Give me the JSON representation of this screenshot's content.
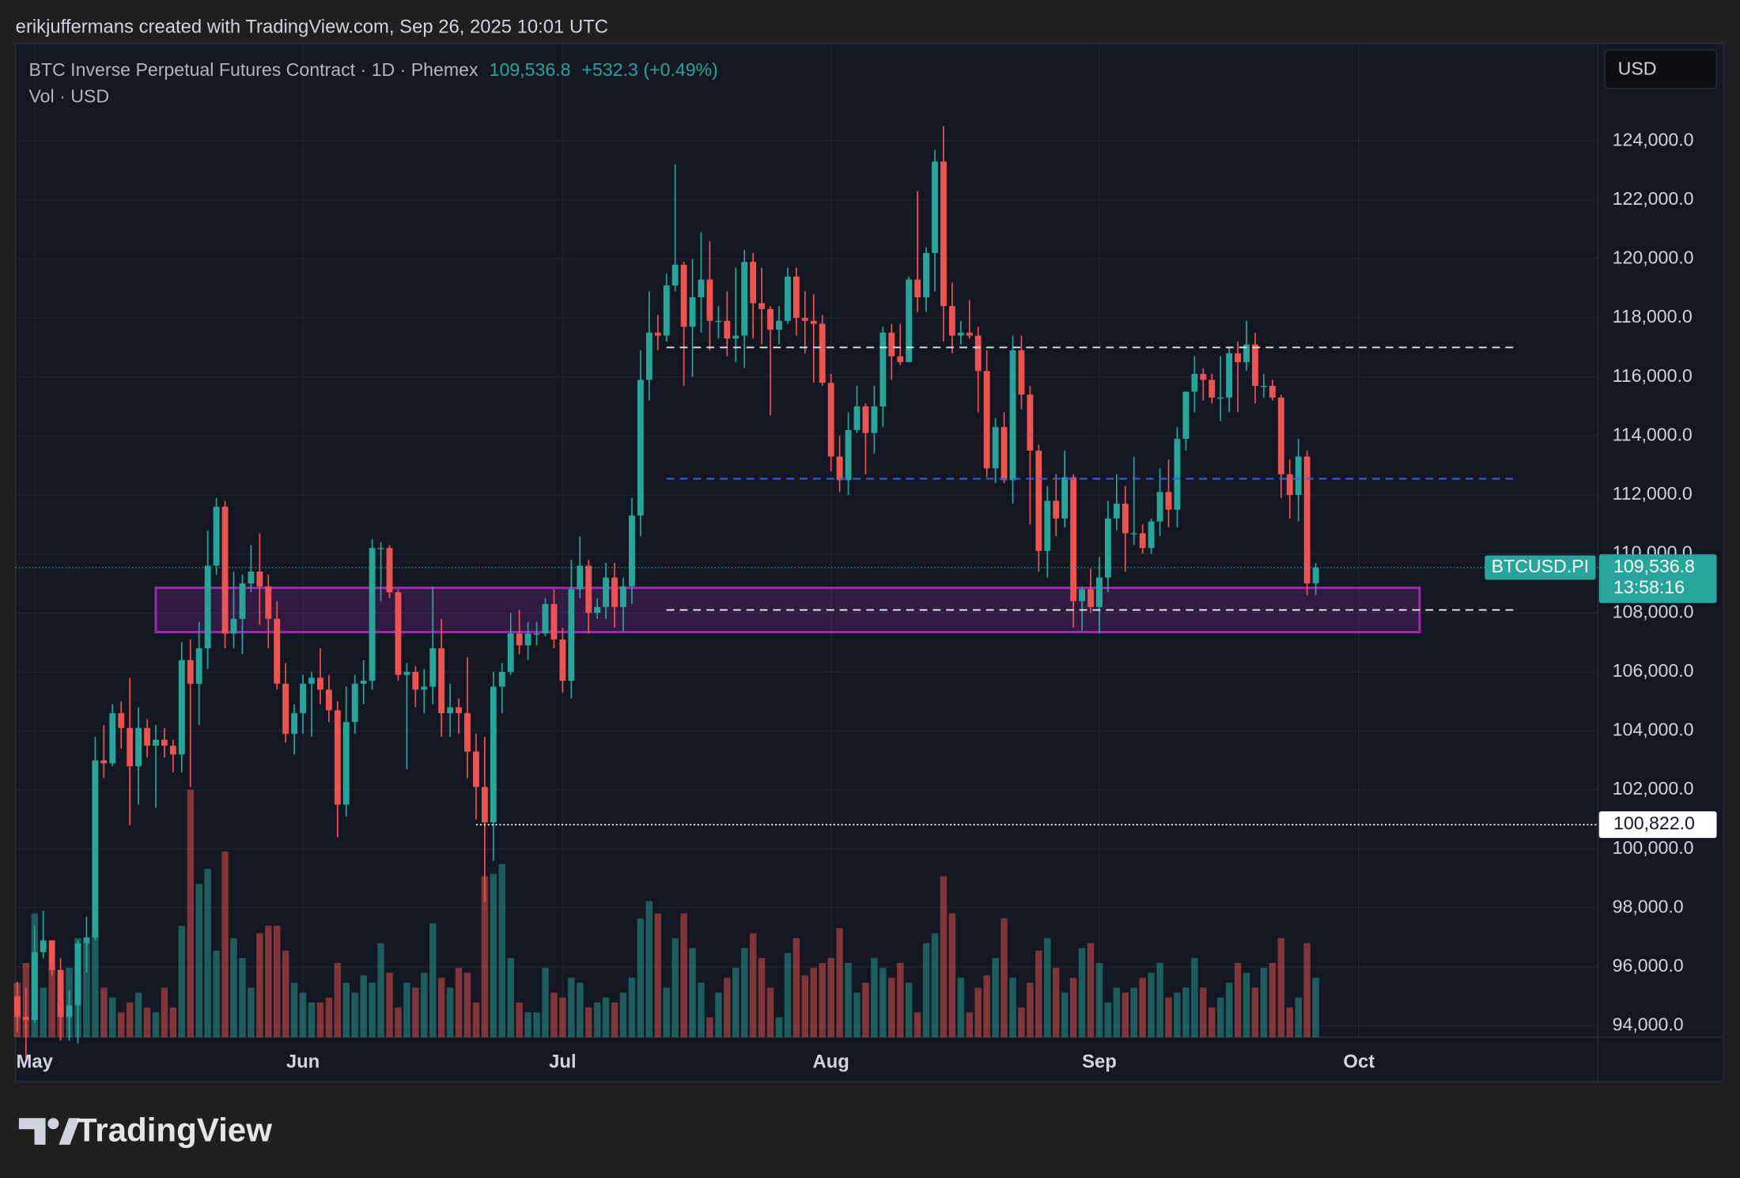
{
  "attribution": "erikjuffermans created with TradingView.com, Sep 26, 2025 10:01 UTC",
  "brand": "TradingView",
  "chart_data": {
    "type": "candlestick",
    "title": "BTC Inverse Perpetual Futures Contract · 1D · Phemex",
    "subtitle": "Vol · USD",
    "currency": "USD",
    "symbol_label": "BTCUSD.PI",
    "countdown": "13:58:16",
    "last_price": {
      "value": 109536.8,
      "label": "109,536.8"
    },
    "change_label": "+532.3 (+0.49%)",
    "up_color": "#26a69a",
    "down_color": "#ef5350",
    "xlim": [
      -0.2,
      182.6
    ],
    "ylim": [
      93620,
      127310
    ],
    "xticks": [
      {
        "value": 2,
        "label": "May"
      },
      {
        "value": 33,
        "label": "Jun"
      },
      {
        "value": 63,
        "label": "Jul"
      },
      {
        "value": 94,
        "label": "Aug"
      },
      {
        "value": 125,
        "label": "Sep"
      },
      {
        "value": 155,
        "label": "Oct"
      }
    ],
    "yticks": [
      {
        "value": 94000,
        "label": "94,000.0"
      },
      {
        "value": 96000,
        "label": "96,000.0"
      },
      {
        "value": 98000,
        "label": "98,000.0"
      },
      {
        "value": 100000,
        "label": "100,000.0"
      },
      {
        "value": 102000,
        "label": "102,000.0"
      },
      {
        "value": 104000,
        "label": "104,000.0"
      },
      {
        "value": 106000,
        "label": "106,000.0"
      },
      {
        "value": 108000,
        "label": "108,000.0"
      },
      {
        "value": 110000,
        "label": "110,000.0"
      },
      {
        "value": 112000,
        "label": "112,000.0"
      },
      {
        "value": 114000,
        "label": "114,000.0"
      },
      {
        "value": 116000,
        "label": "116,000.0"
      },
      {
        "value": 118000,
        "label": "118,000.0"
      },
      {
        "value": 120000,
        "label": "120,000.0"
      },
      {
        "value": 122000,
        "label": "122,000.0"
      },
      {
        "value": 124000,
        "label": "124,000.0"
      }
    ],
    "grid": true,
    "hlines": [
      {
        "price": 117000,
        "from": 75,
        "to": 173,
        "style": "dashed",
        "color": "#e0e3eb"
      },
      {
        "price": 112550,
        "from": 75,
        "to": 173,
        "style": "dashed",
        "color": "#2962ff"
      },
      {
        "price": 108100,
        "from": 75,
        "to": 173,
        "style": "dashed",
        "color": "#e0e3eb"
      },
      {
        "price": {
          "value": 100822,
          "label": "100,822.0"
        },
        "from": 53,
        "to": 182.6,
        "style": "dotted",
        "color": "#e0e3eb"
      }
    ],
    "zone": {
      "low": 107350,
      "high": 108850,
      "from": 16,
      "to": 162,
      "color": "#9c27b0"
    },
    "candles": [
      [
        95000,
        95500,
        93800,
        94300
      ],
      [
        94300,
        95300,
        92900,
        94200
      ],
      [
        94200,
        97400,
        94100,
        96500
      ],
      [
        96500,
        97900,
        96300,
        96900
      ],
      [
        96900,
        96900,
        95700,
        95900
      ],
      [
        95900,
        96300,
        93500,
        94300
      ],
      [
        94300,
        95200,
        93500,
        94700
      ],
      [
        94700,
        96900,
        93400,
        96800
      ],
      [
        96800,
        97700,
        95800,
        97000
      ],
      [
        97000,
        103800,
        96900,
        103000
      ],
      [
        103000,
        104200,
        102400,
        102900
      ],
      [
        102900,
        104900,
        102800,
        104600
      ],
      [
        104600,
        105000,
        103400,
        104100
      ],
      [
        104100,
        105800,
        100800,
        102800
      ],
      [
        102800,
        104800,
        101500,
        104100
      ],
      [
        104100,
        104400,
        103100,
        103500
      ],
      [
        103500,
        104200,
        101400,
        103700
      ],
      [
        103700,
        104100,
        103100,
        103500
      ],
      [
        103500,
        103700,
        102600,
        103200
      ],
      [
        103200,
        107000,
        102600,
        106400
      ],
      [
        106400,
        107100,
        102100,
        105600
      ],
      [
        105600,
        107700,
        104200,
        106800
      ],
      [
        106800,
        110800,
        106100,
        109600
      ],
      [
        109600,
        111900,
        109300,
        111600
      ],
      [
        111600,
        111800,
        106800,
        107300
      ],
      [
        107300,
        109400,
        106800,
        107800
      ],
      [
        107800,
        109300,
        106600,
        109000
      ],
      [
        109000,
        110300,
        108700,
        109400
      ],
      [
        109400,
        110700,
        107600,
        108900
      ],
      [
        108900,
        109300,
        106800,
        107800
      ],
      [
        107800,
        108400,
        105400,
        105600
      ],
      [
        105600,
        106300,
        103600,
        103900
      ],
      [
        103900,
        104900,
        103200,
        104600
      ],
      [
        104600,
        105900,
        103900,
        105600
      ],
      [
        105600,
        106000,
        103800,
        105800
      ],
      [
        105800,
        106800,
        104900,
        105400
      ],
      [
        105400,
        105900,
        104300,
        104700
      ],
      [
        104700,
        105000,
        100400,
        101500
      ],
      [
        101500,
        105500,
        101100,
        104300
      ],
      [
        104300,
        105900,
        103900,
        105600
      ],
      [
        105600,
        106400,
        104900,
        105700
      ],
      [
        105700,
        110500,
        105400,
        110200
      ],
      [
        110200,
        110400,
        108400,
        110200
      ],
      [
        110200,
        110300,
        108500,
        108700
      ],
      [
        108700,
        108800,
        105700,
        105900
      ],
      [
        105900,
        106300,
        102700,
        106000
      ],
      [
        106000,
        106200,
        104800,
        105400
      ],
      [
        105400,
        106100,
        104600,
        105500
      ],
      [
        105500,
        108900,
        104900,
        106800
      ],
      [
        106800,
        107800,
        103800,
        104600
      ],
      [
        104600,
        105600,
        103800,
        104800
      ],
      [
        104800,
        105100,
        103900,
        104600
      ],
      [
        104600,
        106500,
        102400,
        103300
      ],
      [
        103300,
        103900,
        101000,
        102100
      ],
      [
        102100,
        103800,
        98200,
        100900
      ],
      [
        100900,
        106000,
        99600,
        105500
      ],
      [
        105500,
        106300,
        104600,
        106000
      ],
      [
        106000,
        108000,
        105900,
        107300
      ],
      [
        107300,
        108100,
        106600,
        106900
      ],
      [
        106900,
        107700,
        106400,
        107300
      ],
      [
        107300,
        107700,
        106900,
        107300
      ],
      [
        107300,
        108500,
        107200,
        108300
      ],
      [
        108300,
        108800,
        106800,
        107100
      ],
      [
        107100,
        107500,
        105300,
        105700
      ],
      [
        105700,
        109800,
        105100,
        108800
      ],
      [
        108800,
        110600,
        108500,
        109600
      ],
      [
        109600,
        109800,
        107300,
        108000
      ],
      [
        108000,
        108500,
        107800,
        108200
      ],
      [
        108200,
        109700,
        107800,
        109200
      ],
      [
        109200,
        109700,
        107500,
        108200
      ],
      [
        108200,
        109200,
        107400,
        108900
      ],
      [
        108900,
        111900,
        108300,
        111300
      ],
      [
        111300,
        116900,
        110600,
        115900
      ],
      [
        115900,
        118900,
        115200,
        117500
      ],
      [
        117500,
        118100,
        116900,
        117400
      ],
      [
        117400,
        119500,
        117200,
        119100
      ],
      [
        119100,
        123200,
        118900,
        119800
      ],
      [
        119800,
        119900,
        115700,
        117700
      ],
      [
        117700,
        120000,
        116000,
        118700
      ],
      [
        118700,
        120900,
        117500,
        119300
      ],
      [
        119300,
        120600,
        116900,
        117900
      ],
      [
        117900,
        118400,
        117300,
        117900
      ],
      [
        117900,
        118900,
        116700,
        117300
      ],
      [
        117300,
        119700,
        116500,
        117400
      ],
      [
        117400,
        120300,
        116300,
        119900
      ],
      [
        119900,
        120200,
        117300,
        118500
      ],
      [
        118500,
        119700,
        117100,
        118300
      ],
      [
        118300,
        118400,
        114700,
        117600
      ],
      [
        117600,
        118400,
        117100,
        117900
      ],
      [
        117900,
        119700,
        117800,
        119400
      ],
      [
        119400,
        119700,
        117400,
        118000
      ],
      [
        118000,
        118900,
        116800,
        117900
      ],
      [
        117900,
        118800,
        115800,
        117800
      ],
      [
        117800,
        118100,
        115700,
        115800
      ],
      [
        115800,
        116100,
        112800,
        113300
      ],
      [
        113300,
        114000,
        112100,
        112500
      ],
      [
        112500,
        114800,
        112000,
        114200
      ],
      [
        114200,
        115700,
        114100,
        115000
      ],
      [
        115000,
        115100,
        112700,
        114100
      ],
      [
        114100,
        115700,
        113400,
        115000
      ],
      [
        115000,
        117700,
        114300,
        117500
      ],
      [
        117500,
        117800,
        115900,
        116700
      ],
      [
        116700,
        117800,
        116400,
        116500
      ],
      [
        116500,
        119400,
        116500,
        119300
      ],
      [
        119300,
        122300,
        118200,
        118700
      ],
      [
        118700,
        120400,
        118200,
        120200
      ],
      [
        120200,
        123700,
        118900,
        123300
      ],
      [
        123300,
        124500,
        117200,
        118400
      ],
      [
        118400,
        119200,
        116800,
        117400
      ],
      [
        117400,
        117900,
        117100,
        117500
      ],
      [
        117500,
        118600,
        117300,
        117400
      ],
      [
        117400,
        117700,
        114800,
        116200
      ],
      [
        116200,
        116900,
        112600,
        112900
      ],
      [
        112900,
        114600,
        112400,
        114300
      ],
      [
        114300,
        114800,
        112400,
        112500
      ],
      [
        112500,
        117400,
        111700,
        116900
      ],
      [
        116900,
        117400,
        114900,
        115400
      ],
      [
        115400,
        115700,
        111000,
        113500
      ],
      [
        113500,
        113700,
        109400,
        110100
      ],
      [
        110100,
        112300,
        109200,
        111800
      ],
      [
        111800,
        112700,
        110600,
        111200
      ],
      [
        111200,
        113500,
        110900,
        112600
      ],
      [
        112600,
        112700,
        107500,
        108400
      ],
      [
        108400,
        108900,
        107400,
        108800
      ],
      [
        108800,
        109500,
        108000,
        108200
      ],
      [
        108200,
        109900,
        107300,
        109200
      ],
      [
        109200,
        111800,
        108700,
        111200
      ],
      [
        111200,
        112700,
        110800,
        111700
      ],
      [
        111700,
        112300,
        109400,
        110700
      ],
      [
        110700,
        113300,
        110300,
        110700
      ],
      [
        110700,
        111000,
        110000,
        110200
      ],
      [
        110200,
        111200,
        110000,
        111100
      ],
      [
        111100,
        112900,
        110600,
        112100
      ],
      [
        112100,
        113200,
        110900,
        111500
      ],
      [
        111500,
        114300,
        110900,
        113900
      ],
      [
        113900,
        115500,
        113500,
        115500
      ],
      [
        115500,
        116700,
        114800,
        116100
      ],
      [
        116100,
        116300,
        115200,
        115900
      ],
      [
        115900,
        116100,
        115100,
        115300
      ],
      [
        115300,
        116700,
        114500,
        115300
      ],
      [
        115300,
        117000,
        114800,
        116800
      ],
      [
        116800,
        117200,
        114800,
        116500
      ],
      [
        116500,
        117900,
        116200,
        117100
      ],
      [
        117100,
        117500,
        115100,
        115700
      ],
      [
        115700,
        116100,
        115300,
        115700
      ],
      [
        115700,
        115900,
        115200,
        115300
      ],
      [
        115300,
        115400,
        111900,
        112700
      ],
      [
        112700,
        113200,
        111200,
        112000
      ],
      [
        112000,
        113900,
        111100,
        113300
      ],
      [
        113300,
        113500,
        108600,
        109000
      ],
      [
        109004.5,
        109700,
        108600,
        109536.8
      ]
    ],
    "volume": [
      22,
      30,
      50,
      20,
      28,
      14,
      28,
      40,
      38,
      42,
      20,
      16,
      10,
      14,
      18,
      12,
      10,
      20,
      12,
      45,
      100,
      62,
      68,
      35,
      75,
      40,
      32,
      20,
      42,
      45,
      45,
      35,
      22,
      18,
      14,
      14,
      16,
      30,
      22,
      18,
      25,
      22,
      38,
      26,
      12,
      22,
      20,
      26,
      46,
      24,
      20,
      28,
      26,
      14,
      65,
      66,
      70,
      32,
      14,
      10,
      10,
      28,
      18,
      16,
      24,
      22,
      12,
      14,
      16,
      14,
      18,
      24,
      48,
      55,
      50,
      20,
      40,
      50,
      36,
      22,
      8,
      18,
      24,
      28,
      36,
      42,
      32,
      20,
      8,
      34,
      40,
      25,
      28,
      30,
      32,
      44,
      30,
      18,
      22,
      32,
      28,
      24,
      30,
      22,
      10,
      38,
      42,
      65,
      50,
      24,
      10,
      20,
      25,
      32,
      48,
      24,
      12,
      22,
      35,
      40,
      28,
      18,
      24,
      36,
      38,
      30,
      14,
      20,
      18,
      20,
      24,
      26,
      30,
      16,
      18,
      20,
      32,
      20,
      12,
      16,
      22,
      30,
      26,
      20,
      28,
      30,
      40,
      12,
      16,
      38,
      24
    ]
  }
}
